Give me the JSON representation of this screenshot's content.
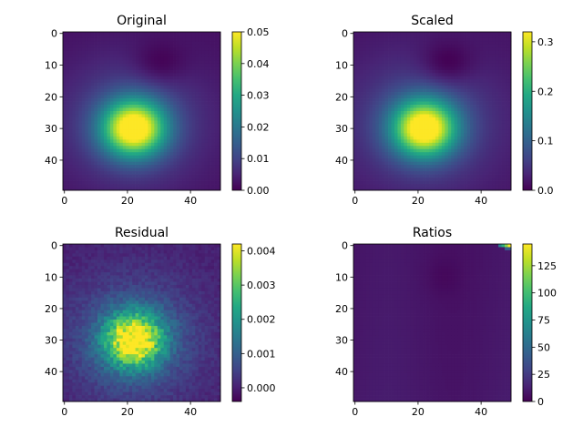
{
  "chart_data": [
    {
      "type": "heatmap",
      "title": "Original",
      "grid_size": [
        50,
        50
      ],
      "x_ticks": [
        "0",
        "20",
        "40"
      ],
      "y_ticks": [
        "0",
        "10",
        "20",
        "30",
        "40"
      ],
      "colormap": "viridis",
      "colorbar": {
        "range": [
          0.0,
          0.05
        ],
        "ticks": [
          0.0,
          0.01,
          0.02,
          0.03,
          0.04,
          0.05
        ],
        "tick_labels": [
          "0.00",
          "0.01",
          "0.02",
          "0.03",
          "0.04",
          "0.05"
        ]
      },
      "features": {
        "peak_center": [
          22,
          30
        ],
        "peak_value": 0.05,
        "min_value": 0.0,
        "min_location": [
          30,
          10
        ]
      }
    },
    {
      "type": "heatmap",
      "title": "Scaled",
      "grid_size": [
        50,
        50
      ],
      "x_ticks": [
        "0",
        "20",
        "40"
      ],
      "y_ticks": [
        "0",
        "10",
        "20",
        "30",
        "40"
      ],
      "colormap": "viridis",
      "colorbar": {
        "range": [
          0.0,
          0.32
        ],
        "ticks": [
          0.0,
          0.1,
          0.2,
          0.3
        ],
        "tick_labels": [
          "0.0",
          "0.1",
          "0.2",
          "0.3"
        ]
      },
      "features": {
        "peak_center": [
          22,
          30
        ],
        "peak_value": 0.32,
        "min_value": 0.0,
        "min_location": [
          29,
          10
        ]
      }
    },
    {
      "type": "heatmap",
      "title": "Residual",
      "grid_size": [
        50,
        50
      ],
      "x_ticks": [
        "0",
        "20",
        "40"
      ],
      "y_ticks": [
        "0",
        "10",
        "20",
        "30",
        "40"
      ],
      "colormap": "viridis",
      "colorbar": {
        "range": [
          -0.0004,
          0.0042
        ],
        "ticks": [
          0.0,
          0.001,
          0.002,
          0.003,
          0.004
        ],
        "tick_labels": [
          "0.000",
          "0.001",
          "0.002",
          "0.003",
          "0.004"
        ]
      },
      "features": {
        "peak_center": [
          22,
          30
        ],
        "peak_value": 0.0042,
        "min_value": -0.0004,
        "noisy": true
      }
    },
    {
      "type": "heatmap",
      "title": "Ratios",
      "grid_size": [
        50,
        50
      ],
      "x_ticks": [
        "0",
        "20",
        "40"
      ],
      "y_ticks": [
        "0",
        "10",
        "20",
        "30",
        "40"
      ],
      "colormap": "viridis",
      "colorbar": {
        "range": [
          0,
          145
        ],
        "ticks": [
          0,
          25,
          50,
          75,
          100,
          125
        ],
        "tick_labels": [
          "0",
          "25",
          "50",
          "75",
          "100",
          "125"
        ]
      },
      "features": {
        "baseline_value": 7,
        "hot_corner": [
          49,
          0
        ],
        "hot_value": 145,
        "dip_center": [
          28,
          10
        ]
      }
    }
  ]
}
